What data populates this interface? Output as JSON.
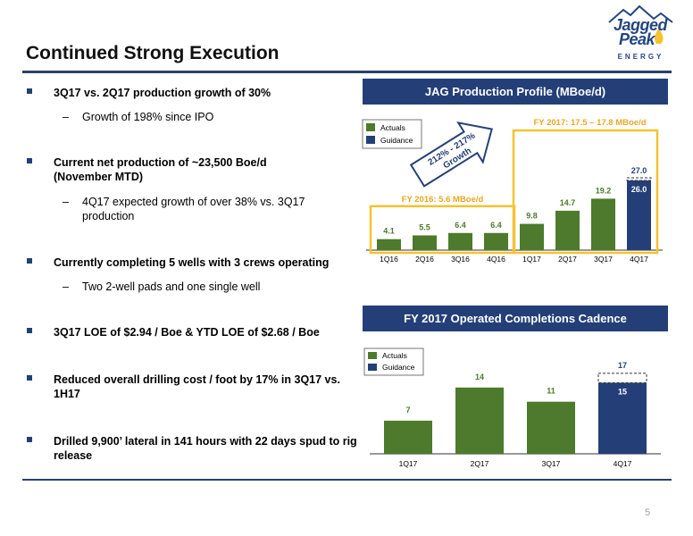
{
  "title": "Continued Strong Execution",
  "logo": {
    "line1": "Jagged",
    "line2": "Peak",
    "sub": "ENERGY"
  },
  "bullets": [
    {
      "text": "3Q17 vs. 2Q17 production growth of 30%",
      "sub": [
        "Growth of 198% since IPO"
      ]
    },
    {
      "text": "Current net production of ~23,500 Boe/d (November MTD)",
      "sub": [
        "4Q17 expected growth of over 38% vs. 3Q17 production"
      ]
    },
    {
      "text": "Currently completing 5 wells with 3 crews operating",
      "sub": [
        "Two 2-well pads and one single well"
      ]
    },
    {
      "text": "3Q17 LOE of $2.94 / Boe & YTD LOE of $2.68 / Boe",
      "sub": []
    },
    {
      "text": "Reduced overall drilling cost / foot by 17% in 3Q17 vs. 1H17",
      "sub": []
    },
    {
      "text": "Drilled 9,900’ lateral in 141 hours with 22 days spud to rig release",
      "sub": []
    }
  ],
  "colors": {
    "actuals": "#4d7a2c",
    "guidance": "#243f78",
    "highlight": "#f5c230",
    "header": "#243f78"
  },
  "chart_data": [
    {
      "type": "bar",
      "title": "JAG Production Profile (MBoe/d)",
      "categories": [
        "1Q16",
        "2Q16",
        "3Q16",
        "4Q16",
        "1Q17",
        "2Q17",
        "3Q17",
        "4Q17"
      ],
      "series": [
        {
          "name": "Actuals",
          "values": [
            4.1,
            5.5,
            6.4,
            6.4,
            9.8,
            14.7,
            19.2,
            null
          ]
        },
        {
          "name": "Guidance",
          "values": [
            null,
            null,
            null,
            null,
            null,
            null,
            null,
            26.0
          ]
        }
      ],
      "guidance_high": {
        "category": "4Q17",
        "value": 27.0
      },
      "legend": [
        "Actuals",
        "Guidance"
      ],
      "legend_position": "top-left",
      "annotations": {
        "fy2016": "FY 2016: 5.6 MBoe/d",
        "fy2017": "FY 2017: 17.5 – 17.8 MBoe/d",
        "growth_line1": "212% - 217%",
        "growth_line2": "Growth"
      }
    },
    {
      "type": "bar",
      "title": "FY 2017 Operated Completions Cadence",
      "categories": [
        "1Q17",
        "2Q17",
        "3Q17",
        "4Q17"
      ],
      "series": [
        {
          "name": "Actuals",
          "values": [
            7,
            14,
            11,
            null
          ]
        },
        {
          "name": "Guidance",
          "values": [
            null,
            null,
            null,
            15
          ]
        }
      ],
      "guidance_high": {
        "category": "4Q17",
        "value": 17
      },
      "legend": [
        "Actuals",
        "Guidance"
      ],
      "legend_position": "top-left"
    }
  ],
  "page_number": "5"
}
